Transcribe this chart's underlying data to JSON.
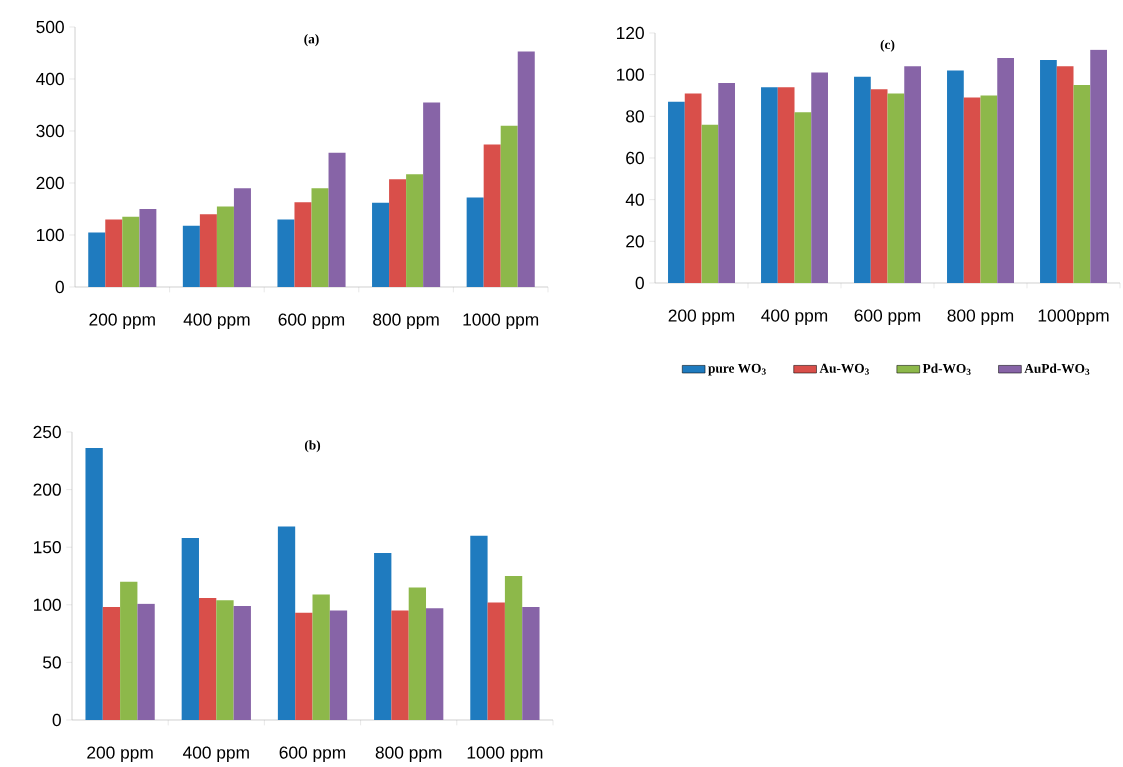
{
  "chart_data": [
    {
      "type": "bar",
      "title": "(a)",
      "categories": [
        "200 ppm",
        "400 ppm",
        "600 ppm",
        "800 ppm",
        "1000 ppm"
      ],
      "ylim": [
        0,
        500
      ],
      "yticks": [
        0,
        100,
        200,
        300,
        400,
        500
      ],
      "series": [
        {
          "color": "#1f7bbf",
          "values": [
            105,
            118,
            130,
            162,
            172
          ]
        },
        {
          "color": "#d94f4a",
          "values": [
            130,
            140,
            163,
            207,
            274
          ]
        },
        {
          "color": "#8db84a",
          "values": [
            135,
            155,
            190,
            217,
            310
          ]
        },
        {
          "color": "#8764a7",
          "values": [
            150,
            190,
            258,
            355,
            453
          ]
        }
      ]
    },
    {
      "type": "bar",
      "title": "(c)",
      "categories": [
        "200 ppm",
        "400 ppm",
        "600 ppm",
        "800 ppm",
        "1000ppm"
      ],
      "ylim": [
        0,
        120
      ],
      "yticks": [
        0,
        20,
        40,
        60,
        80,
        100,
        120
      ],
      "legend": "bottom",
      "series": [
        {
          "name": "pure WO$_{3}$",
          "color": "#1f7bbf",
          "values": [
            87,
            94,
            99,
            102,
            107
          ]
        },
        {
          "name": "Au-WO$_{3}$",
          "color": "#d94f4a",
          "values": [
            91,
            94,
            93,
            89,
            104
          ]
        },
        {
          "name": "Pd-WO$_{3}$",
          "color": "#8db84a",
          "values": [
            76,
            82,
            91,
            90,
            95
          ]
        },
        {
          "name": "AuPd-WO$_{3}$",
          "color": "#8764a7",
          "values": [
            96,
            101,
            104,
            108,
            112
          ]
        }
      ]
    },
    {
      "type": "bar",
      "title": "(b)",
      "categories": [
        "200 ppm",
        "400 ppm",
        "600 ppm",
        "800 ppm",
        "1000 ppm"
      ],
      "ylim": [
        0,
        250
      ],
      "yticks": [
        0,
        50,
        100,
        150,
        200,
        250
      ],
      "series": [
        {
          "color": "#1f7bbf",
          "values": [
            236,
            158,
            168,
            145,
            160
          ]
        },
        {
          "color": "#d94f4a",
          "values": [
            98,
            106,
            93,
            95,
            102
          ]
        },
        {
          "color": "#8db84a",
          "values": [
            120,
            104,
            109,
            115,
            125
          ]
        },
        {
          "color": "#8764a7",
          "values": [
            101,
            99,
            95,
            97,
            98
          ]
        }
      ]
    }
  ]
}
